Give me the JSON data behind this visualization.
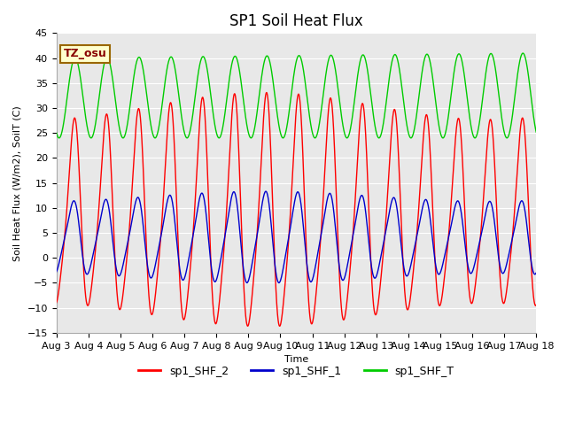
{
  "title": "SP1 Soil Heat Flux",
  "xlabel": "Time",
  "ylabel": "Soil Heat Flux (W/m2), SoilT (C)",
  "ylim": [
    -15,
    45
  ],
  "yticks": [
    -15,
    -10,
    -5,
    0,
    5,
    10,
    15,
    20,
    25,
    30,
    35,
    40,
    45
  ],
  "x_start_day": 3,
  "x_end_day": 18,
  "x_tick_days": [
    3,
    4,
    5,
    6,
    7,
    8,
    9,
    10,
    11,
    12,
    13,
    14,
    15,
    16,
    17,
    18
  ],
  "x_tick_labels": [
    "Aug 3",
    "Aug 4",
    "Aug 5",
    "Aug 6",
    "Aug 7",
    "Aug 8",
    "Aug 9",
    "Aug 10",
    "Aug 11",
    "Aug 12",
    "Aug 13",
    "Aug 14",
    "Aug 15",
    "Aug 16",
    "Aug 17",
    "Aug 18"
  ],
  "color_shf2": "#ff0000",
  "color_shf1": "#0000cc",
  "color_shft": "#00cc00",
  "label_shf2": "sp1_SHF_2",
  "label_shf1": "sp1_SHF_1",
  "label_shft": "sp1_SHF_T",
  "tz_label": "TZ_osu",
  "tz_bg": "#ffffcc",
  "tz_border": "#996600",
  "tz_text_color": "#880000",
  "plot_bg": "#e8e8e8",
  "fig_bg": "#ffffff",
  "grid_color": "#ffffff",
  "linewidth": 1.0,
  "title_fontsize": 12,
  "axis_label_fontsize": 8,
  "tick_fontsize": 8,
  "legend_fontsize": 9
}
